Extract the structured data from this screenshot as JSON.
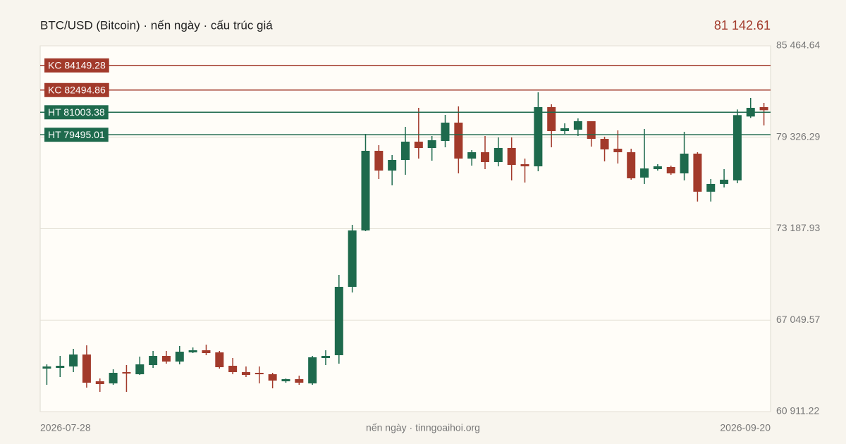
{
  "chart_data": {
    "type": "candlestick",
    "title": "BTC/USD (Bitcoin) · nến ngày · cấu trúc giá",
    "last_price_label": "81 142.61",
    "footer": "nến ngày · tinngoaihoi.org",
    "categories": [
      "2026-07-28",
      null,
      null,
      null,
      null,
      null,
      null,
      null,
      null,
      null,
      null,
      null,
      null,
      null,
      null,
      null,
      null,
      null,
      null,
      null,
      null,
      null,
      null,
      null,
      null,
      null,
      null,
      null,
      null,
      null,
      null,
      null,
      null,
      null,
      null,
      null,
      null,
      null,
      null,
      null,
      null,
      null,
      null,
      null,
      null,
      null,
      null,
      null,
      null,
      null,
      null,
      null,
      null,
      null,
      "2026-09-20"
    ],
    "open": [
      63797,
      63844,
      63939,
      64743,
      62945,
      62803,
      63560,
      63418,
      64033,
      64648,
      64270,
      64885,
      65027,
      64885,
      63986,
      63560,
      63513,
      63418,
      62945,
      63087,
      62803,
      64507,
      64696,
      69285,
      73070,
      78416,
      77091,
      77801,
      79031,
      78605,
      79078,
      80308,
      77896,
      78321,
      77659,
      78605,
      77517,
      77375,
      81349,
      79740,
      79835,
      80402,
      79220,
      78558,
      78321,
      76619,
      77186,
      77328,
      76902,
      78227,
      75672,
      76193,
      76429,
      80718,
      81349
    ],
    "high": [
      64081,
      64648,
      65122,
      65358,
      63135,
      63750,
      64033,
      64601,
      64980,
      64980,
      65311,
      65216,
      65405,
      64980,
      64507,
      63939,
      63939,
      63513,
      63135,
      63324,
      64648,
      65027,
      70089,
      73448,
      79551,
      78794,
      78132,
      80024,
      81302,
      79409,
      80829,
      81397,
      78463,
      79409,
      79314,
      79314,
      77896,
      82343,
      81538,
      80260,
      80592,
      80402,
      79362,
      79788,
      78558,
      79883,
      77517,
      77422,
      79693,
      78321,
      76524,
      77186,
      81191,
      81964,
      81633
    ],
    "low": [
      62709,
      63229,
      63560,
      62520,
      62236,
      62709,
      62236,
      63371,
      63844,
      64128,
      64081,
      64838,
      64696,
      63797,
      63418,
      63229,
      62803,
      62472,
      62851,
      62709,
      62709,
      64033,
      64128,
      68906,
      73022,
      76524,
      76098,
      76808,
      77896,
      77754,
      78652,
      76902,
      77422,
      77186,
      77375,
      76429,
      76287,
      77044,
      78652,
      79551,
      79409,
      78700,
      77706,
      77564,
      76477,
      76193,
      77091,
      76808,
      76429,
      75010,
      75010,
      75955,
      76240,
      80624,
      80119
    ],
    "close": [
      63939,
      63986,
      64743,
      62851,
      62756,
      63513,
      63466,
      64081,
      64648,
      64270,
      64932,
      65027,
      64838,
      63891,
      63560,
      63371,
      63418,
      62993,
      63087,
      62851,
      64554,
      64648,
      69285,
      73070,
      78416,
      77091,
      77801,
      79031,
      78605,
      79125,
      80308,
      77896,
      78321,
      77659,
      78605,
      77470,
      77375,
      81349,
      79740,
      79929,
      80402,
      79220,
      78510,
      78321,
      76571,
      77233,
      77375,
      76902,
      78227,
      75672,
      76193,
      76477,
      80813,
      81301,
      81142.61
    ],
    "up_color": "#1e6a4d",
    "down_color": "#a23a2b",
    "ylim": [
      60911.22,
      85464.64
    ],
    "yticks": [
      {
        "value": 60911.22,
        "label": "60 911.22"
      },
      {
        "value": 67049.57,
        "label": "67 049.57"
      },
      {
        "value": 73187.93,
        "label": "73 187.93"
      },
      {
        "value": 79326.29,
        "label": "79 326.29"
      },
      {
        "value": 85464.64,
        "label": "85 464.64"
      }
    ],
    "grid": true,
    "levels": [
      {
        "label": "KC 84149.28",
        "value": 84149.28,
        "color": "#a23a2b"
      },
      {
        "label": "KC 82494.86",
        "value": 82494.86,
        "color": "#a23a2b"
      },
      {
        "label": "HT 81003.38",
        "value": 81003.38,
        "color": "#1e6a4d"
      },
      {
        "label": "HT 79495.01",
        "value": 79495.01,
        "color": "#1e6a4d"
      }
    ]
  }
}
